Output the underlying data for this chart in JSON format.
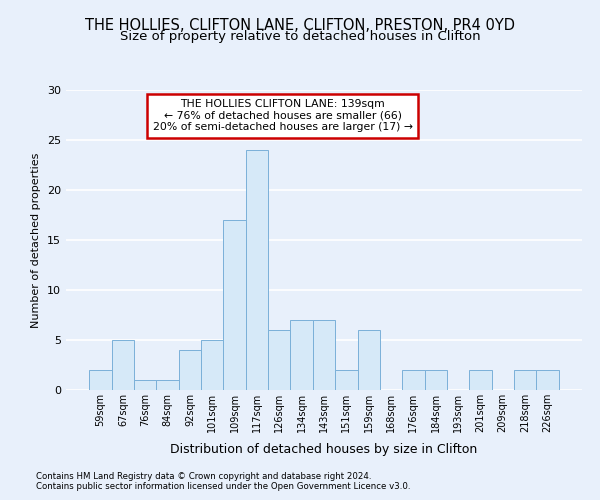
{
  "title1": "THE HOLLIES, CLIFTON LANE, CLIFTON, PRESTON, PR4 0YD",
  "title2": "Size of property relative to detached houses in Clifton",
  "xlabel": "Distribution of detached houses by size in Clifton",
  "ylabel": "Number of detached properties",
  "categories": [
    "59sqm",
    "67sqm",
    "76sqm",
    "84sqm",
    "92sqm",
    "101sqm",
    "109sqm",
    "117sqm",
    "126sqm",
    "134sqm",
    "143sqm",
    "151sqm",
    "159sqm",
    "168sqm",
    "176sqm",
    "184sqm",
    "193sqm",
    "201sqm",
    "209sqm",
    "218sqm",
    "226sqm"
  ],
  "values": [
    2,
    5,
    1,
    1,
    4,
    5,
    17,
    24,
    6,
    7,
    7,
    2,
    6,
    0,
    2,
    2,
    0,
    2,
    0,
    2,
    2
  ],
  "bar_color": "#d6e9f8",
  "bar_edge_color": "#7ab0d8",
  "annotation_title": "THE HOLLIES CLIFTON LANE: 139sqm",
  "annotation_line1": "← 76% of detached houses are smaller (66)",
  "annotation_line2": "20% of semi-detached houses are larger (17) →",
  "annotation_box_color": "#ffffff",
  "annotation_box_edge_color": "#cc0000",
  "ylim": [
    0,
    30
  ],
  "yticks": [
    0,
    5,
    10,
    15,
    20,
    25,
    30
  ],
  "footer1": "Contains HM Land Registry data © Crown copyright and database right 2024.",
  "footer2": "Contains public sector information licensed under the Open Government Licence v3.0.",
  "bg_color": "#e8f0fb",
  "plot_bg_color": "#e8f0fb",
  "grid_color": "#ffffff",
  "title1_fontsize": 10.5,
  "title2_fontsize": 9.5,
  "xlabel_fontsize": 9,
  "ylabel_fontsize": 8
}
